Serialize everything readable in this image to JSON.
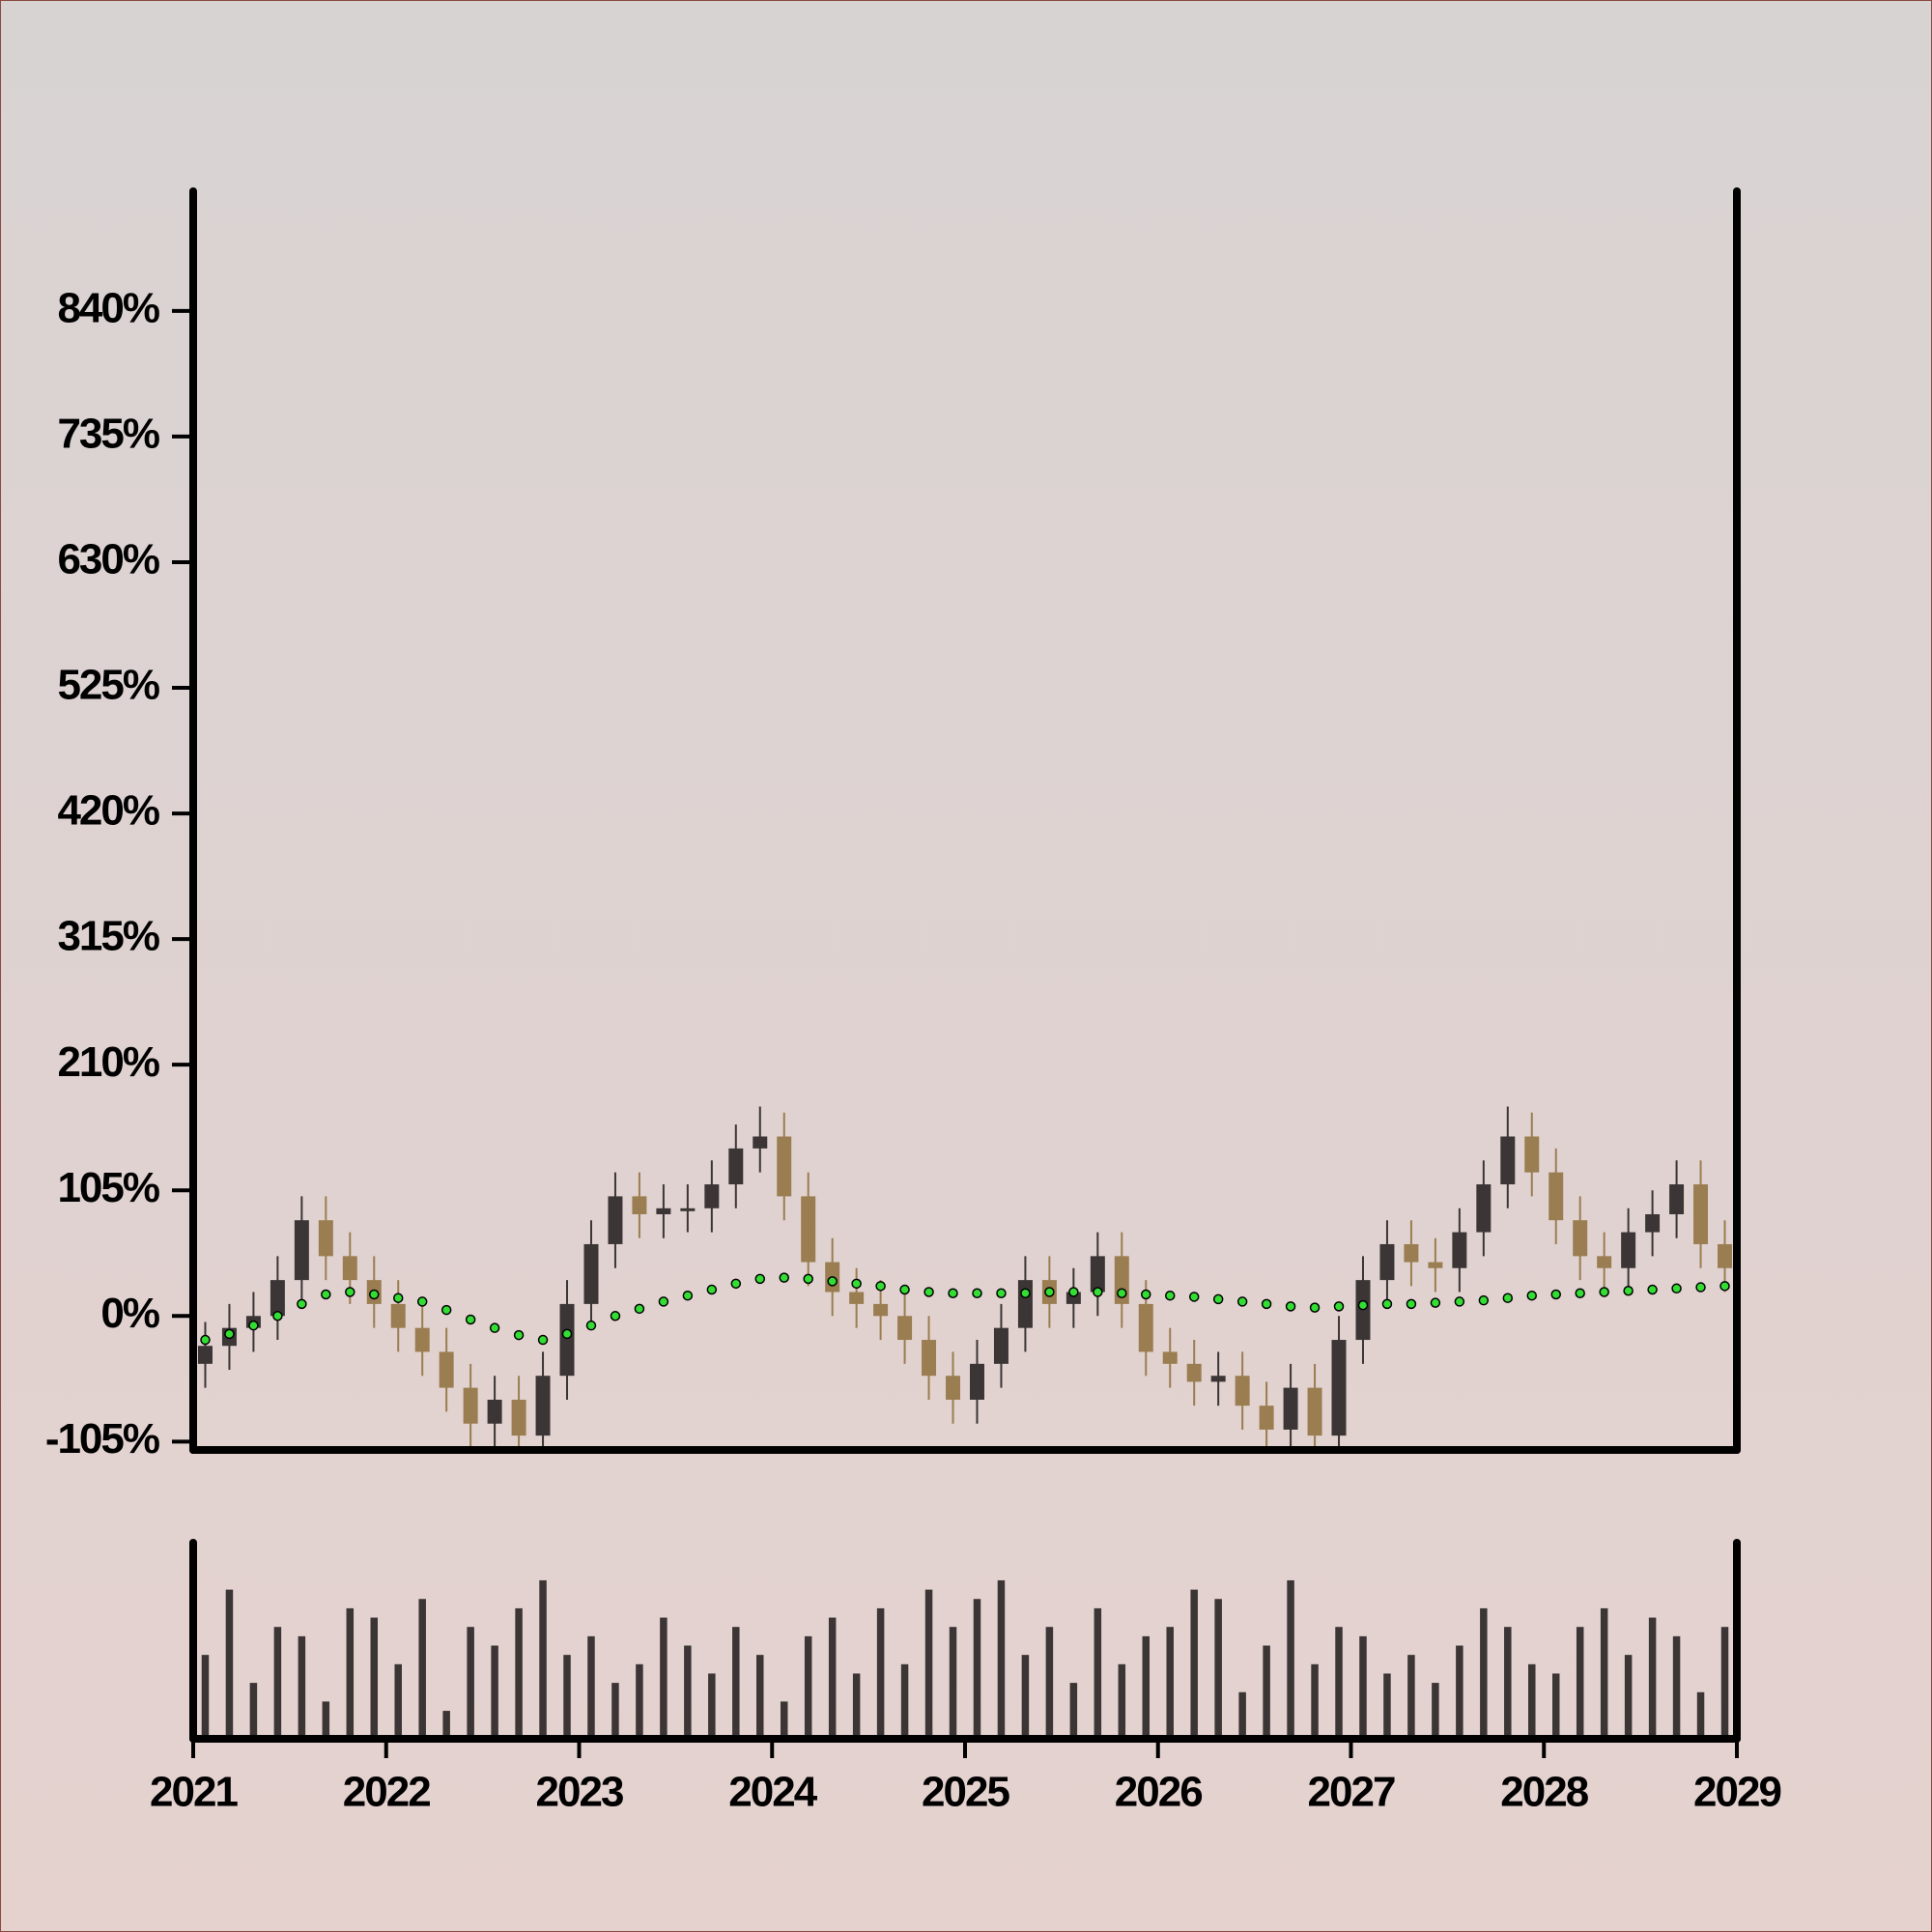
{
  "chart_data": {
    "type": "candlestick",
    "x": [
      2021.0625,
      2021.1875,
      2021.3125,
      2021.4375,
      2021.5625,
      2021.6875,
      2021.8125,
      2021.9375,
      2022.0625,
      2022.1875,
      2022.3125,
      2022.4375,
      2022.5625,
      2022.6875,
      2022.8125,
      2022.9375,
      2023.0625,
      2023.1875,
      2023.3125,
      2023.4375,
      2023.5625,
      2023.6875,
      2023.8125,
      2023.9375,
      2024.0625,
      2024.1875,
      2024.3125,
      2024.4375,
      2024.5625,
      2024.6875,
      2024.8125,
      2024.9375,
      2025.0625,
      2025.1875,
      2025.3125,
      2025.4375,
      2025.5625,
      2025.6875,
      2025.8125,
      2025.9375,
      2026.0625,
      2026.1875,
      2026.3125,
      2026.4375,
      2026.5625,
      2026.6875,
      2026.8125,
      2026.9375,
      2027.0625,
      2027.1875,
      2027.3125,
      2027.4375,
      2027.5625,
      2027.6875,
      2027.8125,
      2027.9375,
      2028.0625,
      2028.1875,
      2028.3125,
      2028.4375,
      2028.5625,
      2028.6875,
      2028.8125,
      2028.9375
    ],
    "open": [
      -40,
      -25,
      -10,
      0,
      30,
      80,
      50,
      30,
      10,
      -10,
      -30,
      -60,
      -90,
      -70,
      -100,
      -50,
      10,
      60,
      100,
      85,
      90,
      90,
      110,
      140,
      150,
      100,
      45,
      20,
      10,
      0,
      -20,
      -50,
      -70,
      -40,
      -10,
      30,
      10,
      20,
      50,
      10,
      -30,
      -40,
      -55,
      -50,
      -75,
      -95,
      -60,
      -100,
      -20,
      30,
      60,
      45,
      40,
      70,
      110,
      150,
      120,
      80,
      50,
      40,
      70,
      85,
      110,
      60
    ],
    "high": [
      -5,
      10,
      20,
      50,
      100,
      100,
      70,
      50,
      30,
      10,
      -10,
      -40,
      -50,
      -50,
      -30,
      30,
      80,
      120,
      120,
      110,
      110,
      130,
      160,
      175,
      170,
      120,
      65,
      40,
      30,
      20,
      0,
      -30,
      -20,
      10,
      50,
      50,
      40,
      70,
      70,
      30,
      -10,
      -20,
      -30,
      -30,
      -55,
      -40,
      -40,
      0,
      50,
      80,
      80,
      65,
      90,
      130,
      175,
      170,
      140,
      100,
      70,
      90,
      105,
      130,
      130,
      80
    ],
    "low": [
      -60,
      -45,
      -30,
      -20,
      10,
      30,
      10,
      -10,
      -30,
      -50,
      -80,
      -110,
      -110,
      -120,
      -120,
      -70,
      -10,
      40,
      65,
      65,
      70,
      70,
      90,
      120,
      80,
      25,
      0,
      -10,
      -20,
      -40,
      -70,
      -90,
      -90,
      -60,
      -30,
      -10,
      -10,
      0,
      -10,
      -50,
      -60,
      -75,
      -75,
      -95,
      -115,
      -115,
      -120,
      -120,
      -40,
      10,
      25,
      20,
      20,
      50,
      90,
      100,
      60,
      30,
      20,
      20,
      50,
      65,
      40,
      20
    ],
    "close": [
      -25,
      -10,
      0,
      30,
      80,
      50,
      30,
      10,
      -10,
      -30,
      -60,
      -90,
      -70,
      -100,
      -50,
      10,
      60,
      100,
      85,
      90,
      90,
      110,
      140,
      150,
      100,
      45,
      20,
      10,
      0,
      -20,
      -50,
      -70,
      -40,
      -10,
      30,
      10,
      20,
      50,
      10,
      -30,
      -40,
      -55,
      -50,
      -75,
      -95,
      -60,
      -100,
      -20,
      30,
      60,
      45,
      40,
      70,
      110,
      150,
      120,
      80,
      50,
      40,
      70,
      85,
      110,
      60,
      40
    ],
    "up_color": "#3b3535",
    "down_color": "#9a7d50",
    "moving_average": {
      "color": "#33dd33",
      "values": [
        -20,
        -15,
        -8,
        0,
        10,
        18,
        20,
        18,
        15,
        12,
        5,
        -3,
        -10,
        -16,
        -20,
        -15,
        -8,
        0,
        6,
        12,
        17,
        22,
        27,
        31,
        32,
        31,
        29,
        27,
        25,
        22,
        20,
        19,
        19,
        19,
        19,
        20,
        20,
        20,
        19,
        18,
        17,
        16,
        14,
        12,
        10,
        8,
        7,
        8,
        9,
        10,
        10,
        11,
        12,
        13,
        15,
        17,
        18,
        19,
        20,
        21,
        22,
        23,
        24,
        25
      ]
    },
    "volume": {
      "color": "#3b3535",
      "values": [
        45,
        80,
        30,
        60,
        55,
        20,
        70,
        65,
        40,
        75,
        15,
        60,
        50,
        70,
        85,
        45,
        55,
        30,
        40,
        65,
        50,
        35,
        60,
        45,
        20,
        55,
        65,
        35,
        70,
        40,
        80,
        60,
        75,
        85,
        45,
        60,
        30,
        70,
        40,
        55,
        60,
        80,
        75,
        25,
        50,
        85,
        40,
        60,
        55,
        35,
        45,
        30,
        50,
        70,
        60,
        40,
        35,
        60,
        70,
        45,
        65,
        55,
        25,
        60
      ],
      "ylim": [
        0,
        100
      ]
    },
    "xlim": [
      2021,
      2029
    ],
    "xticks": [
      2021,
      2022,
      2023,
      2024,
      2025,
      2026,
      2027,
      2028,
      2029
    ],
    "ylim": [
      -112,
      940
    ],
    "yticks": [
      {
        "value": -105,
        "label": "-105%"
      },
      {
        "value": 0,
        "label": "0%"
      },
      {
        "value": 105,
        "label": "105%"
      },
      {
        "value": 210,
        "label": "210%"
      },
      {
        "value": 315,
        "label": "315%"
      },
      {
        "value": 420,
        "label": "420%"
      },
      {
        "value": 525,
        "label": "525%"
      },
      {
        "value": 630,
        "label": "630%"
      },
      {
        "value": 735,
        "label": "735%"
      },
      {
        "value": 840,
        "label": "840%"
      }
    ]
  }
}
